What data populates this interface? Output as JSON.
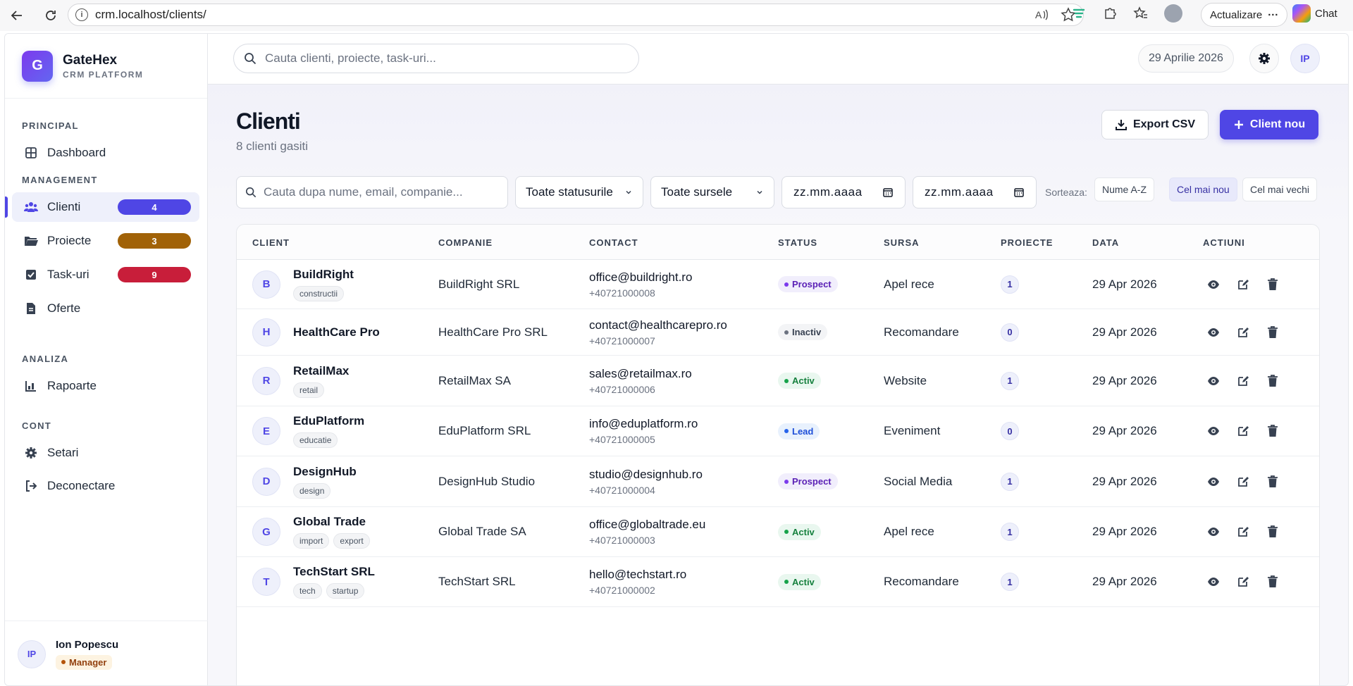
{
  "browser": {
    "url": "crm.localhost/clients/",
    "update_label": "Actualizare",
    "chat_label": "Chat"
  },
  "brand": {
    "logo_letter": "G",
    "name": "GateHex",
    "subtitle": "CRM PLATFORM"
  },
  "sidebar": {
    "sections": {
      "principal": "PRINCIPAL",
      "management": "MANAGEMENT",
      "analiza": "ANALIZA",
      "cont": "CONT"
    },
    "items": {
      "dashboard": "Dashboard",
      "clienti": "Clienti",
      "clienti_badge": "4",
      "proiecte": "Proiecte",
      "proiecte_badge": "3",
      "taskuri": "Task-uri",
      "taskuri_badge": "9",
      "oferte": "Oferte",
      "rapoarte": "Rapoarte",
      "setari": "Setari",
      "deconectare": "Deconectare"
    },
    "badge_colors": {
      "clienti": "#4f46e5",
      "proiecte": "#a16207",
      "taskuri": "#c81e3a"
    },
    "user": {
      "initials": "IP",
      "name": "Ion Popescu",
      "role": "Manager"
    }
  },
  "topbar": {
    "search_placeholder": "Cauta clienti, proiecte, task-uri...",
    "date": "29 Aprilie 2026",
    "user_initials": "IP"
  },
  "page": {
    "title": "Clienti",
    "subtitle": "8 clienti gasiti",
    "export_label": "Export CSV",
    "new_label": "Client nou"
  },
  "filters": {
    "search_placeholder": "Cauta dupa nume, email, companie...",
    "status_select": "Toate statusurile",
    "source_select": "Toate sursele",
    "date_from": "zz.mm.aaaa",
    "date_to": "zz.mm.aaaa",
    "sort_label": "Sorteaza:",
    "sort_options": [
      "Nume A-Z",
      "Cel mai nou",
      "Cel mai vechi"
    ],
    "sort_active": "Cel mai nou"
  },
  "table": {
    "headers": [
      "CLIENT",
      "COMPANIE",
      "CONTACT",
      "STATUS",
      "SURSA",
      "PROIECTE",
      "DATA",
      "ACTIUNI"
    ],
    "rows": [
      {
        "initial": "B",
        "name": "BuildRight",
        "tags": [
          "constructii"
        ],
        "company": "BuildRight SRL",
        "email": "office@buildright.ro",
        "phone": "+40721000008",
        "status": "Prospect",
        "source": "Apel rece",
        "projects": "1",
        "date": "29 Apr 2026"
      },
      {
        "initial": "H",
        "name": "HealthCare Pro",
        "tags": [],
        "company": "HealthCare Pro SRL",
        "email": "contact@healthcarepro.ro",
        "phone": "+40721000007",
        "status": "Inactiv",
        "source": "Recomandare",
        "projects": "0",
        "date": "29 Apr 2026"
      },
      {
        "initial": "R",
        "name": "RetailMax",
        "tags": [
          "retail"
        ],
        "company": "RetailMax SA",
        "email": "sales@retailmax.ro",
        "phone": "+40721000006",
        "status": "Activ",
        "source": "Website",
        "projects": "1",
        "date": "29 Apr 2026"
      },
      {
        "initial": "E",
        "name": "EduPlatform",
        "tags": [
          "educatie"
        ],
        "company": "EduPlatform SRL",
        "email": "info@eduplatform.ro",
        "phone": "+40721000005",
        "status": "Lead",
        "source": "Eveniment",
        "projects": "0",
        "date": "29 Apr 2026"
      },
      {
        "initial": "D",
        "name": "DesignHub",
        "tags": [
          "design"
        ],
        "company": "DesignHub Studio",
        "email": "studio@designhub.ro",
        "phone": "+40721000004",
        "status": "Prospect",
        "source": "Social Media",
        "projects": "1",
        "date": "29 Apr 2026"
      },
      {
        "initial": "G",
        "name": "Global Trade",
        "tags": [
          "import",
          "export"
        ],
        "company": "Global Trade SA",
        "email": "office@globaltrade.eu",
        "phone": "+40721000003",
        "status": "Activ",
        "source": "Apel rece",
        "projects": "1",
        "date": "29 Apr 2026"
      },
      {
        "initial": "T",
        "name": "TechStart SRL",
        "tags": [
          "tech",
          "startup"
        ],
        "company": "TechStart SRL",
        "email": "hello@techstart.ro",
        "phone": "+40721000002",
        "status": "Activ",
        "source": "Recomandare",
        "projects": "1",
        "date": "29 Apr 2026"
      }
    ]
  },
  "status_colors": {
    "Prospect": {
      "bg": "#f1eefc",
      "fg": "#5b21b6",
      "dot": "#7c3aed"
    },
    "Inactiv": {
      "bg": "#f3f4f6",
      "fg": "#374151",
      "dot": "#6b7280"
    },
    "Activ": {
      "bg": "#e9f7ef",
      "fg": "#15803d",
      "dot": "#16a34a"
    },
    "Lead": {
      "bg": "#e8f1fd",
      "fg": "#1d4ed8",
      "dot": "#2563eb"
    }
  },
  "icons": {
    "back": "arrow-left-icon",
    "reload": "reload-icon",
    "search": "search-icon",
    "settings": "gear-icon",
    "view": "eye-icon",
    "edit": "edit-icon",
    "delete": "trash-icon"
  }
}
